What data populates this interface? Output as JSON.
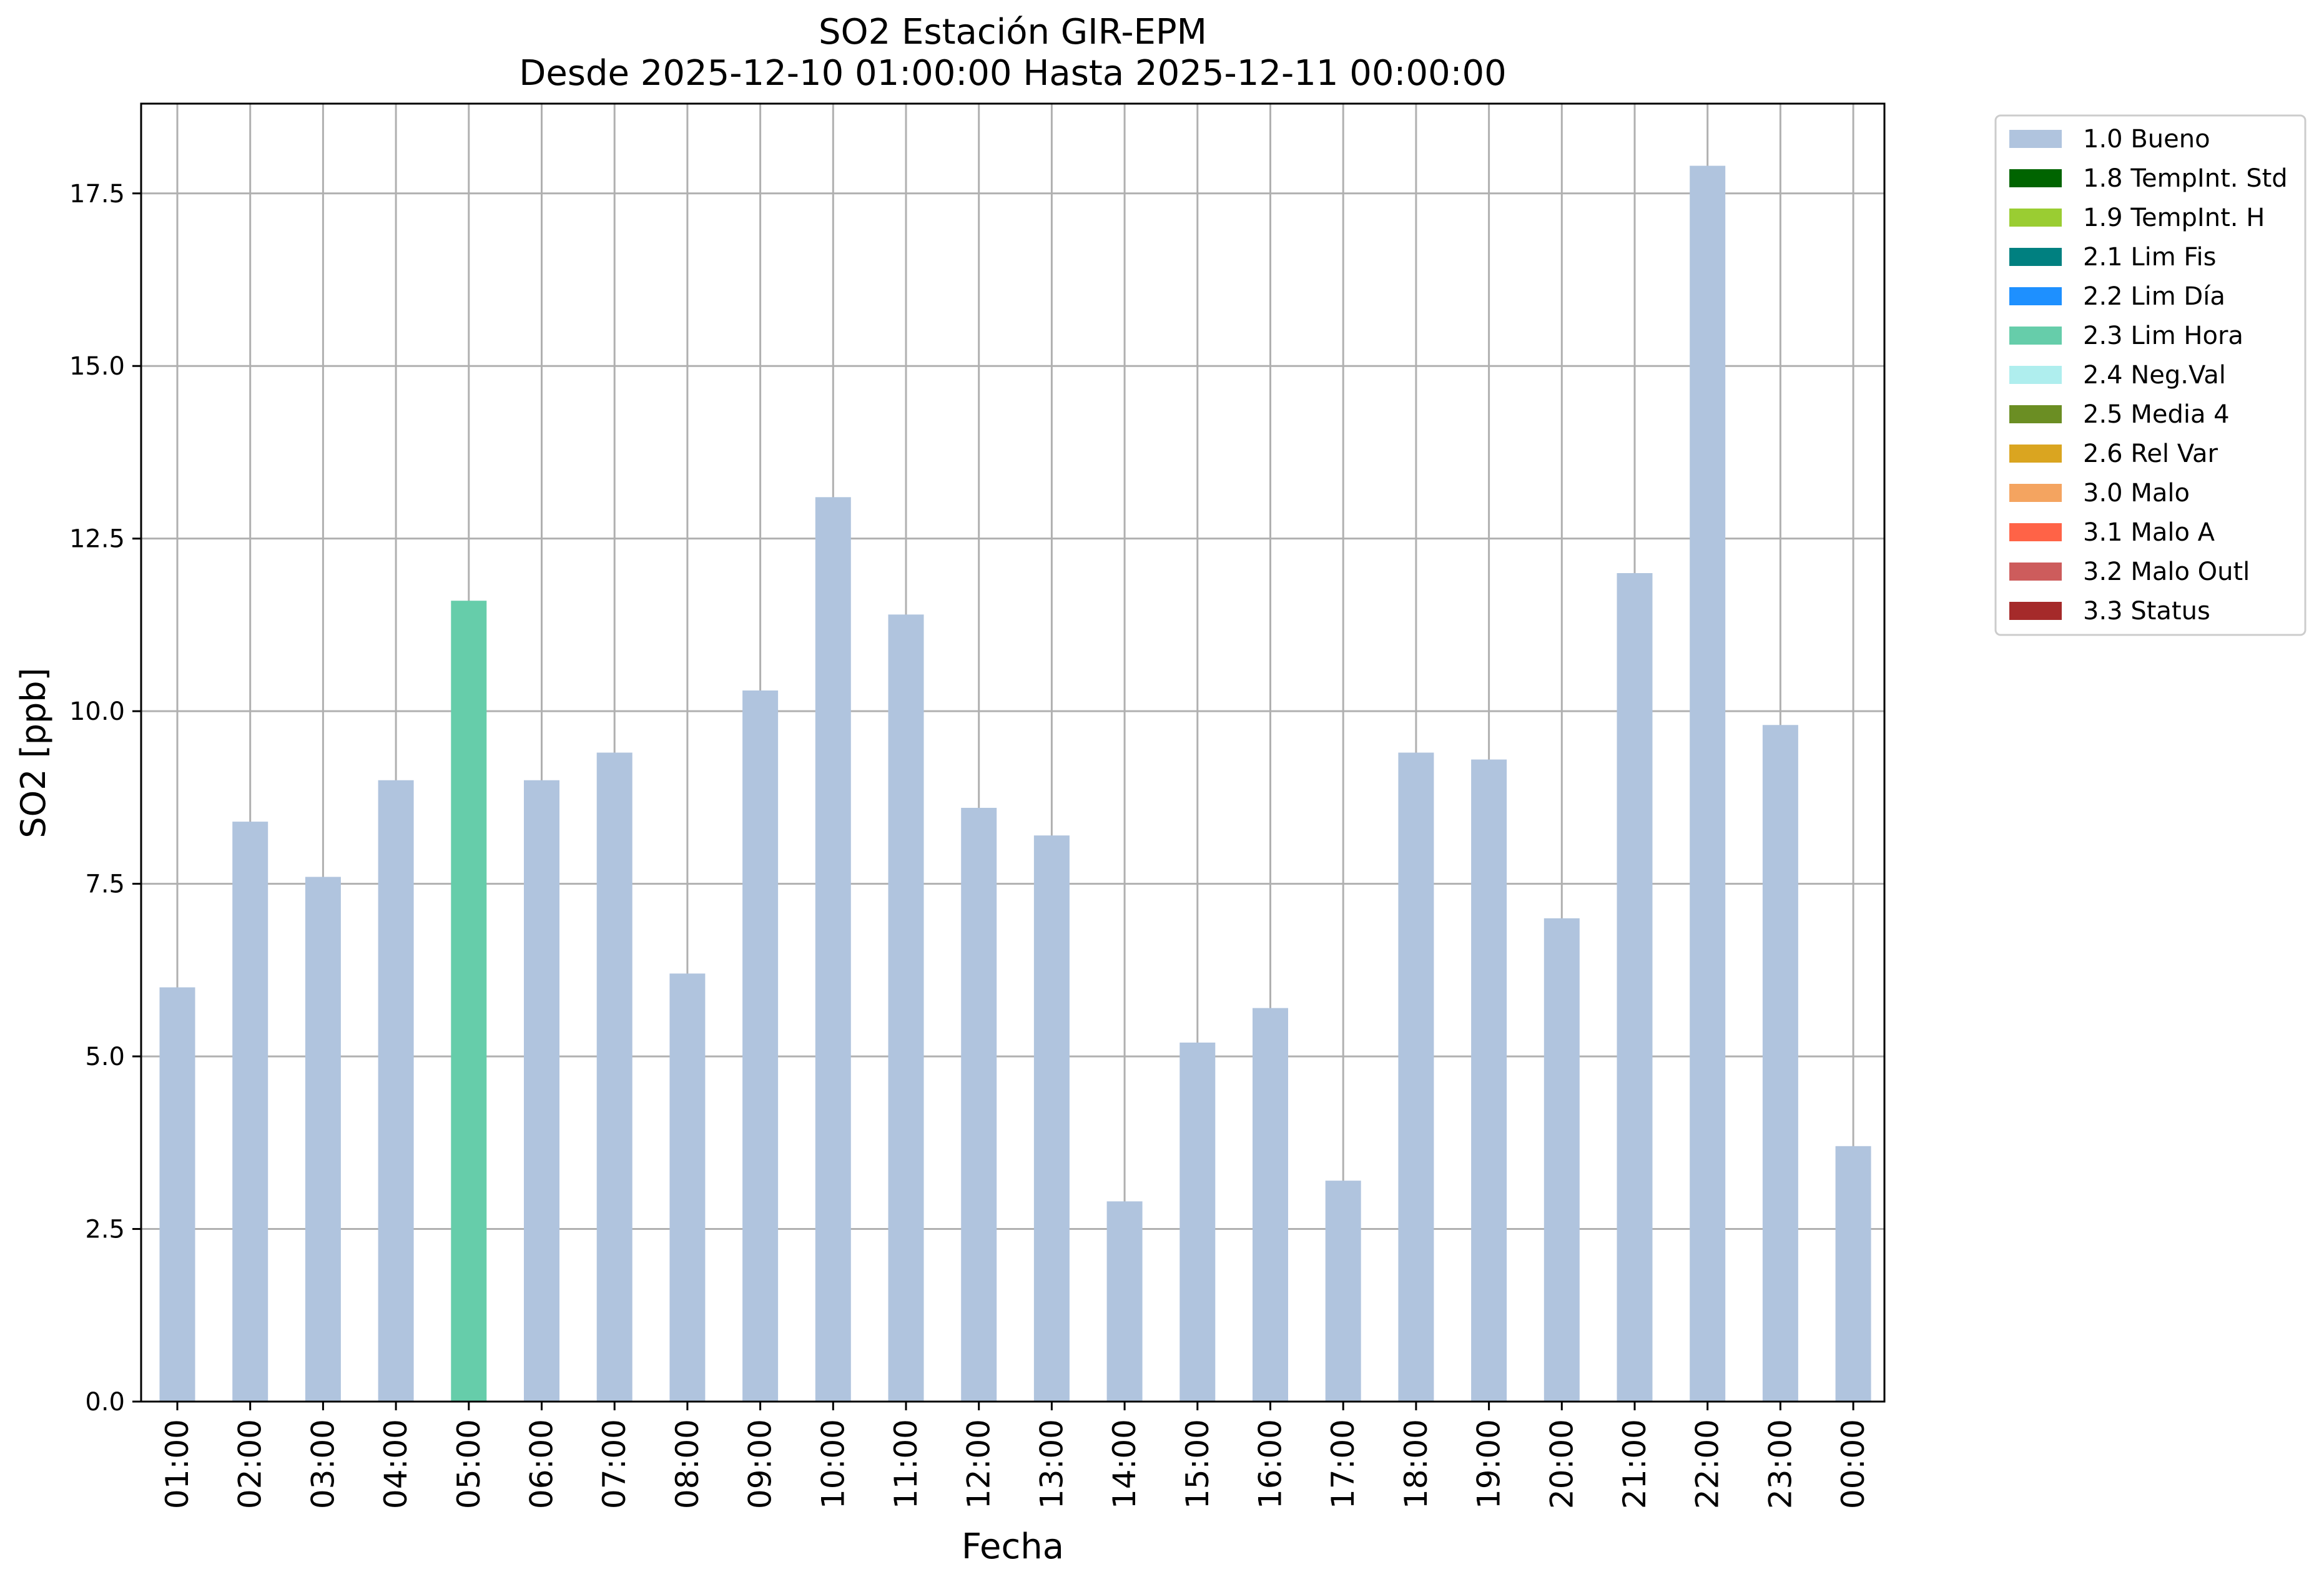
{
  "chart_data": {
    "type": "bar",
    "title": "SO2 Estación GIR-EPM",
    "subtitle": "Desde 2025-12-10 01:00:00 Hasta 2025-12-11 00:00:00",
    "xlabel": "Fecha",
    "ylabel": "SO2 [ppb]",
    "ylim": [
      0,
      18.8
    ],
    "yticks": [
      "0.0",
      "2.5",
      "5.0",
      "7.5",
      "10.0",
      "12.5",
      "15.0",
      "17.5"
    ],
    "grid": true,
    "legend_position": "outside top-right",
    "categories": [
      "01:00",
      "02:00",
      "03:00",
      "04:00",
      "05:00",
      "06:00",
      "07:00",
      "08:00",
      "09:00",
      "10:00",
      "11:00",
      "12:00",
      "13:00",
      "14:00",
      "15:00",
      "16:00",
      "17:00",
      "18:00",
      "19:00",
      "20:00",
      "21:00",
      "22:00",
      "23:00",
      "00:00"
    ],
    "values": [
      6.0,
      8.4,
      7.6,
      9.0,
      11.6,
      9.0,
      9.4,
      6.2,
      10.3,
      13.1,
      11.4,
      8.6,
      8.2,
      2.9,
      5.2,
      5.7,
      3.2,
      9.4,
      9.3,
      7.0,
      12.0,
      17.9,
      9.8,
      3.7
    ],
    "flags": [
      "1.0 Bueno",
      "1.0 Bueno",
      "1.0 Bueno",
      "1.0 Bueno",
      "2.3 Lim Hora",
      "1.0 Bueno",
      "1.0 Bueno",
      "1.0 Bueno",
      "1.0 Bueno",
      "1.0 Bueno",
      "1.0 Bueno",
      "1.0 Bueno",
      "1.0 Bueno",
      "1.0 Bueno",
      "1.0 Bueno",
      "1.0 Bueno",
      "1.0 Bueno",
      "1.0 Bueno",
      "1.0 Bueno",
      "1.0 Bueno",
      "1.0 Bueno",
      "1.0 Bueno",
      "1.0 Bueno",
      "1.0 Bueno"
    ],
    "legend": [
      {
        "label": "1.0 Bueno",
        "color": "#b0c4de"
      },
      {
        "label": "1.8 TempInt. Std",
        "color": "#006400"
      },
      {
        "label": "1.9 TempInt. H",
        "color": "#9acd32"
      },
      {
        "label": "2.1 Lim Fis",
        "color": "#008080"
      },
      {
        "label": "2.2 Lim Día",
        "color": "#1e90ff"
      },
      {
        "label": "2.3 Lim Hora",
        "color": "#66cdaa"
      },
      {
        "label": "2.4 Neg.Val",
        "color": "#afeeee"
      },
      {
        "label": "2.5 Media 4",
        "color": "#6b8e23"
      },
      {
        "label": "2.6 Rel Var",
        "color": "#daa520"
      },
      {
        "label": "3.0 Malo",
        "color": "#f4a460"
      },
      {
        "label": "3.1 Malo A",
        "color": "#ff6347"
      },
      {
        "label": "3.2 Malo Outl",
        "color": "#cd5c5c"
      },
      {
        "label": "3.3 Status",
        "color": "#a52a2a"
      }
    ]
  }
}
